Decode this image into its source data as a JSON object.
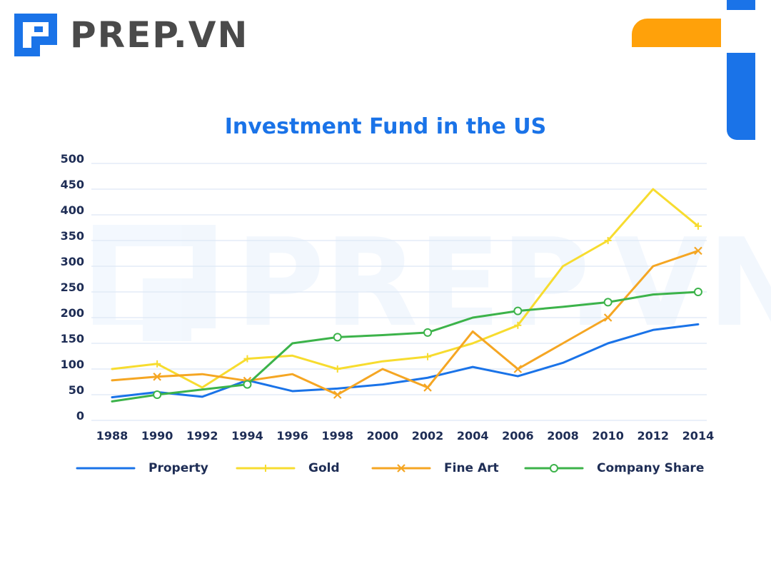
{
  "brand": {
    "name": "PREP.VN"
  },
  "colors": {
    "primary": "#1a73e8",
    "accent": "#ffa10a",
    "text": "#1e2d55",
    "grid": "#dde8f5"
  },
  "chart_data": {
    "type": "line",
    "title": "Investment Fund in the US",
    "xlabel": "",
    "ylabel": "",
    "x": [
      "1988",
      "1990",
      "1992",
      "1994",
      "1996",
      "1998",
      "2000",
      "2002",
      "2004",
      "2006",
      "2008",
      "2010",
      "2012",
      "2014"
    ],
    "ylim": [
      0,
      500
    ],
    "yticks": [
      0,
      50,
      100,
      150,
      200,
      250,
      300,
      350,
      400,
      450,
      500
    ],
    "grid": true,
    "legend_position": "bottom",
    "series": [
      {
        "name": "Property",
        "color": "#1a73e8",
        "marker": "none",
        "values": [
          45,
          55,
          46,
          78,
          57,
          62,
          70,
          83,
          104,
          86,
          112,
          150,
          176,
          187
        ]
      },
      {
        "name": "Gold",
        "color": "#f7dc2f",
        "marker": "plus",
        "values": [
          100,
          110,
          64,
          120,
          126,
          100,
          115,
          124,
          150,
          185,
          300,
          350,
          450,
          378
        ]
      },
      {
        "name": "Fine Art",
        "color": "#f5a623",
        "marker": "x",
        "values": [
          78,
          85,
          90,
          77,
          90,
          50,
          100,
          64,
          173,
          100,
          150,
          200,
          300,
          330
        ]
      },
      {
        "name": "Company Share",
        "color": "#3cb34a",
        "marker": "circle",
        "values": [
          37,
          50,
          60,
          70,
          150,
          162,
          166,
          171,
          200,
          213,
          221,
          230,
          245,
          250
        ]
      }
    ]
  }
}
